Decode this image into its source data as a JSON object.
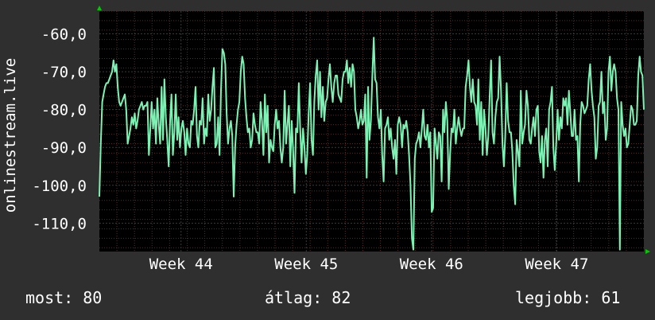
{
  "chart_data": {
    "type": "line",
    "ylabel": "onlinestream.live",
    "y_ticks": [
      "-60,0",
      "-70,0",
      "-80,0",
      "-90,0",
      "-100,0",
      "-110,0"
    ],
    "y_tick_values": [
      -60,
      -70,
      -80,
      -90,
      -100,
      -110
    ],
    "ylim": [
      -117.5,
      -54
    ],
    "x_ticks": [
      "Week 44",
      "Week 45",
      "Week 46",
      "Week 47"
    ],
    "grid": true,
    "colors": {
      "background": "#000000",
      "grid": "#3a3a3a",
      "grid_minor": "#5a2a2a",
      "line": "#7ef2b4",
      "axis_arrow": "#00cc00"
    },
    "series": [
      {
        "values": [
          -103,
          -89,
          -78,
          -76,
          -74,
          -73,
          -73,
          -72,
          -71,
          -70,
          -67,
          -70,
          -68,
          -74,
          -78,
          -79,
          -78,
          -77,
          -76,
          -80,
          -89,
          -87,
          -85,
          -82,
          -84,
          -81,
          -85,
          -83,
          -80,
          -79,
          -78,
          -80,
          -79,
          -79,
          -78,
          -92,
          -85,
          -78,
          -85,
          -80,
          -89,
          -77,
          -84,
          -89,
          -74,
          -88,
          -72,
          -82,
          -88,
          -95,
          -83,
          -76,
          -92,
          -86,
          -76,
          -88,
          -82,
          -90,
          -85,
          -83,
          -86,
          -92,
          -85,
          -89,
          -90,
          -83,
          -84,
          -80,
          -74,
          -87,
          -90,
          -83,
          -84,
          -77,
          -89,
          -85,
          -87,
          -76,
          -83,
          -80,
          -74,
          -69,
          -90,
          -89,
          -82,
          -92,
          -75,
          -64,
          -65,
          -68,
          -81,
          -89,
          -85,
          -83,
          -87,
          -103,
          -90,
          -84,
          -80,
          -78,
          -70,
          -66,
          -68,
          -77,
          -82,
          -86,
          -85,
          -90,
          -88,
          -81,
          -84,
          -86,
          -86,
          -89,
          -78,
          -83,
          -92,
          -76,
          -86,
          -79,
          -94,
          -88,
          -90,
          -91,
          -84,
          -80,
          -85,
          -83,
          -90,
          -94,
          -90,
          -75,
          -89,
          -84,
          -79,
          -95,
          -83,
          -91,
          -102,
          -85,
          -86,
          -73,
          -85,
          -94,
          -85,
          -90,
          -97,
          -92,
          -81,
          -73,
          -88,
          -92,
          -78,
          -71,
          -67,
          -80,
          -70,
          -82,
          -74,
          -83,
          -78,
          -77,
          -72,
          -68,
          -74,
          -78,
          -73,
          -71,
          -71,
          -76,
          -77,
          -78,
          -72,
          -70,
          -70,
          -67,
          -73,
          -69,
          -74,
          -68,
          -70,
          -80,
          -82,
          -85,
          -83,
          -80,
          -84,
          -83,
          -76,
          -98,
          -74,
          -88,
          -83,
          -71,
          -61,
          -72,
          -73,
          -82,
          -85,
          -80,
          -92,
          -99,
          -85,
          -84,
          -82,
          -88,
          -85,
          -90,
          -93,
          -88,
          -97,
          -84,
          -82,
          -84,
          -90,
          -84,
          -85,
          -83,
          -86,
          -92,
          -100,
          -114,
          -117,
          -93,
          -89,
          -88,
          -86,
          -90,
          -85,
          -80,
          -87,
          -88,
          -84,
          -90,
          -86,
          -107,
          -106,
          -85,
          -89,
          -93,
          -86,
          -87,
          -99,
          -80,
          -86,
          -78,
          -83,
          -101,
          -92,
          -85,
          -86,
          -80,
          -89,
          -85,
          -82,
          -85,
          -87,
          -85,
          -85,
          -74,
          -71,
          -67,
          -74,
          -78,
          -72,
          -78,
          -79,
          -84,
          -72,
          -88,
          -78,
          -92,
          -80,
          -85,
          -92,
          -87,
          -76,
          -67,
          -86,
          -89,
          -82,
          -78,
          -77,
          -66,
          -75,
          -89,
          -95,
          -87,
          -73,
          -83,
          -86,
          -86,
          -91,
          -100,
          -105,
          -88,
          -91,
          -95,
          -75,
          -89,
          -86,
          -84,
          -75,
          -79,
          -88,
          -89,
          -85,
          -82,
          -87,
          -80,
          -79,
          -91,
          -94,
          -87,
          -98,
          -88,
          -85,
          -95,
          -80,
          -78,
          -74,
          -90,
          -96,
          -89,
          -80,
          -88,
          -82,
          -85,
          -77,
          -79,
          -77,
          -84,
          -75,
          -81,
          -87,
          -87,
          -80,
          -88,
          -87,
          -99,
          -84,
          -78,
          -79,
          -81,
          -80,
          -79,
          -72,
          -68,
          -75,
          -79,
          -82,
          -93,
          -90,
          -79,
          -78,
          -70,
          -81,
          -78,
          -88,
          -85,
          -70,
          -66,
          -75,
          -70,
          -68,
          -70,
          -77,
          -80,
          -117,
          -78,
          -84,
          -87,
          -85,
          -90,
          -89,
          -84,
          -79,
          -80,
          -84,
          -84,
          -83,
          -71,
          -66,
          -70,
          -71,
          -80
        ]
      }
    ]
  },
  "footer": {
    "now": "most: 80",
    "avg": "átlag: 82",
    "max": "legjobb: 61"
  }
}
